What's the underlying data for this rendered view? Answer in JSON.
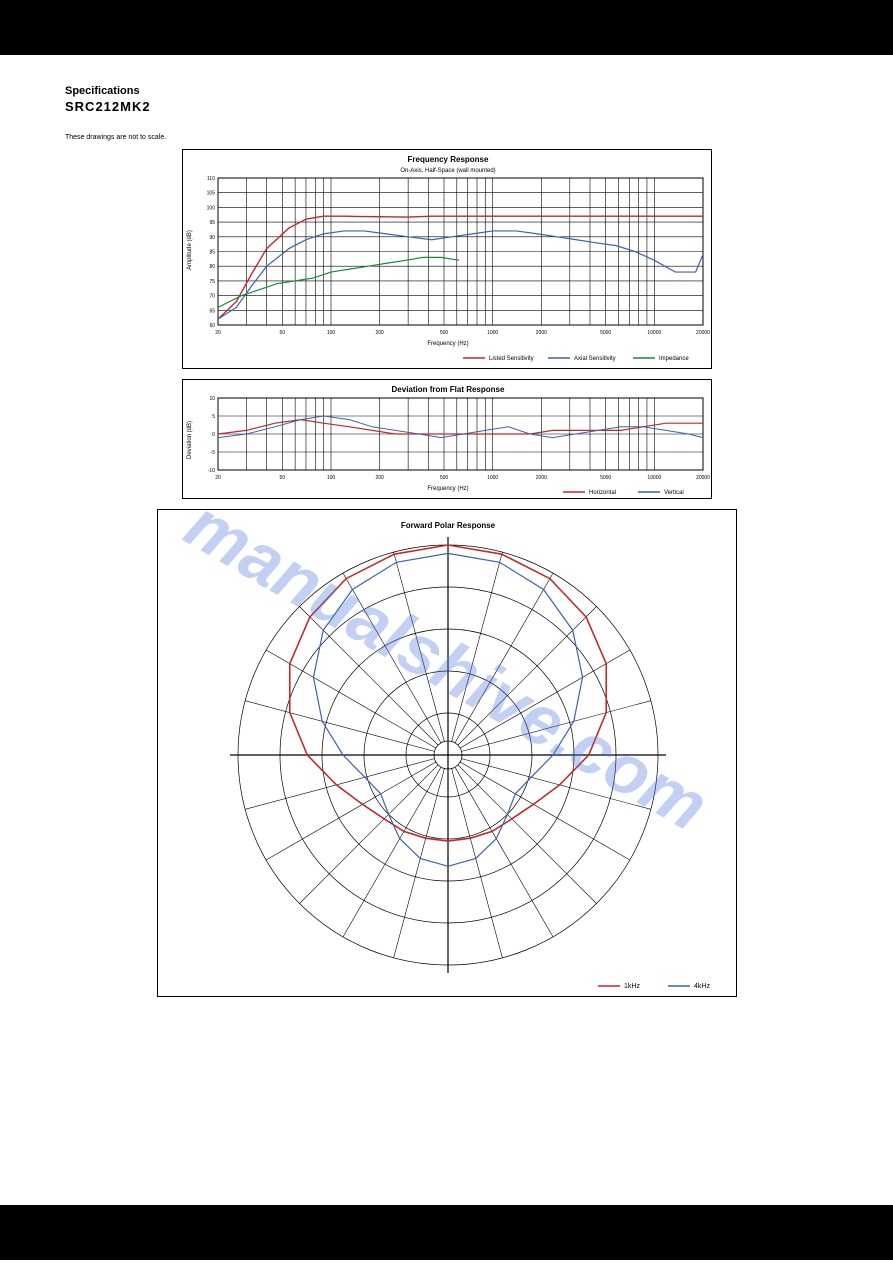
{
  "header": {
    "subtitle": "Specifications",
    "spec_code": "SRC212MK2",
    "note": "These drawings are not to scale."
  },
  "watermark": "manualshive.com",
  "frequency_response": {
    "type": "line",
    "title": "Frequency Response",
    "subtitle": "On-Axis, Half-Space (wall mounted)",
    "xlabel": "Frequency (Hz)",
    "ylabel": "Amplitude (dB)",
    "xticks": [
      20,
      30,
      40,
      50,
      60,
      70,
      80,
      90,
      100,
      200,
      300,
      400,
      500,
      600,
      700,
      800,
      900,
      1000,
      2000,
      3000,
      4000,
      5000,
      6000,
      7000,
      8000,
      9000,
      10000,
      20000
    ],
    "xtick_labels": [
      "20",
      "",
      "",
      "50",
      "",
      "",
      "",
      "",
      "100",
      "200",
      "",
      "",
      "500",
      "",
      "",
      "",
      "",
      "1000",
      "2000",
      "",
      "",
      "5000",
      "",
      "",
      "",
      "",
      "10000",
      "20000"
    ],
    "ylim": [
      60,
      110
    ],
    "ytick_step": 5,
    "background_color": "#ffffff",
    "grid_color": "#000000",
    "series": [
      {
        "name": "Listed Sensitivity",
        "color": "#c22a2a",
        "width": 1.4,
        "x": [
          20,
          26,
          32,
          40,
          55,
          70,
          90,
          120,
          160,
          220,
          300,
          420,
          560,
          750,
          1000,
          1400,
          1900,
          2500,
          3300,
          4300,
          5800,
          7600,
          10000,
          13500,
          18000,
          20000
        ],
        "y": [
          62,
          68,
          77,
          86,
          93,
          96,
          97,
          97,
          96.9,
          96.8,
          96.7,
          97,
          97,
          97,
          97,
          97,
          97,
          97,
          97,
          97,
          97,
          97,
          97,
          97,
          97,
          97
        ]
      },
      {
        "name": "Axial Sensitivity",
        "color": "#3a63b0",
        "width": 1.2,
        "x": [
          20,
          26,
          32,
          40,
          55,
          70,
          90,
          120,
          160,
          220,
          300,
          420,
          560,
          750,
          1000,
          1400,
          1900,
          2500,
          3300,
          4300,
          5800,
          7600,
          10000,
          13500,
          18000,
          20000
        ],
        "y": [
          62,
          66,
          73,
          80,
          86,
          89,
          91,
          92,
          92,
          91,
          90,
          89,
          90,
          91,
          92,
          92,
          91,
          90,
          89,
          88,
          87,
          85,
          82,
          78,
          78,
          84
        ]
      },
      {
        "name": "Impedance",
        "color": "#1a8a3a",
        "width": 1.2,
        "x": [
          20,
          28,
          36,
          46,
          60,
          78,
          100,
          130,
          170,
          220,
          290,
          370,
          480,
          620
        ],
        "y": [
          66,
          70,
          72,
          74,
          75,
          76,
          78,
          79,
          80,
          81,
          82,
          83,
          83,
          82
        ]
      }
    ],
    "legend_items": [
      {
        "label": "Listed Sensitivity",
        "color": "#c22a2a"
      },
      {
        "label": "Axial Sensitivity",
        "color": "#3a63b0"
      },
      {
        "label": "Impedance",
        "color": "#1a8a3a"
      }
    ],
    "title_fontsize": 8,
    "label_fontsize": 6
  },
  "deviation_response": {
    "type": "line",
    "title": "Deviation from Flat Response",
    "subtitle": "",
    "xlabel": "Frequency (Hz)",
    "ylabel": "Deviation (dB)",
    "xticks": [
      20,
      30,
      40,
      50,
      60,
      70,
      80,
      90,
      100,
      200,
      300,
      400,
      500,
      600,
      700,
      800,
      900,
      1000,
      2000,
      3000,
      4000,
      5000,
      6000,
      7000,
      8000,
      9000,
      10000,
      20000
    ],
    "xtick_labels": [
      "20",
      "",
      "",
      "50",
      "",
      "",
      "",
      "",
      "100",
      "200",
      "",
      "",
      "500",
      "",
      "",
      "",
      "",
      "1000",
      "2000",
      "",
      "",
      "5000",
      "",
      "",
      "",
      "",
      "10000",
      "20000"
    ],
    "ylim": [
      -10,
      10
    ],
    "ytick_step": 5,
    "background_color": "#ffffff",
    "grid_color": "#000000",
    "series": [
      {
        "name": "Horizontal",
        "color": "#c22a2a",
        "width": 1.2,
        "x": [
          20,
          30,
          45,
          65,
          90,
          130,
          180,
          250,
          350,
          480,
          660,
          900,
          1250,
          1700,
          2350,
          3250,
          4500,
          6200,
          8500,
          11800,
          16300,
          20000
        ],
        "y": [
          0,
          1,
          3,
          4,
          3,
          2,
          1,
          0,
          0,
          0,
          0,
          0,
          0,
          0,
          1,
          1,
          1,
          1,
          2,
          3,
          3,
          3
        ]
      },
      {
        "name": "Vertical",
        "color": "#3a63b0",
        "width": 1.0,
        "x": [
          20,
          30,
          45,
          65,
          90,
          130,
          180,
          250,
          350,
          480,
          660,
          900,
          1250,
          1700,
          2350,
          3250,
          4500,
          6200,
          8500,
          11800,
          16300,
          20000
        ],
        "y": [
          -1,
          0,
          2,
          4,
          5,
          4,
          2,
          1,
          0,
          -1,
          0,
          1,
          2,
          0,
          -1,
          0,
          1,
          2,
          2,
          1,
          0,
          -1
        ]
      }
    ],
    "legend_items": [
      {
        "label": "Horizontal",
        "color": "#c22a2a"
      },
      {
        "label": "Vertical",
        "color": "#3a63b0"
      }
    ],
    "title_fontsize": 8,
    "label_fontsize": 6
  },
  "polar_response": {
    "type": "polar",
    "title": "Forward Polar Response",
    "rings": 5,
    "spokes": 24,
    "background_color": "#ffffff",
    "grid_color": "#000000",
    "series": [
      {
        "name": "1kHz",
        "color": "#c22a2a",
        "width": 1.6,
        "points": [
          [
            0,
            1.0
          ],
          [
            15,
            0.99
          ],
          [
            30,
            0.97
          ],
          [
            45,
            0.93
          ],
          [
            60,
            0.87
          ],
          [
            75,
            0.78
          ],
          [
            90,
            0.67
          ],
          [
            105,
            0.55
          ],
          [
            120,
            0.47
          ],
          [
            135,
            0.43
          ],
          [
            150,
            0.42
          ],
          [
            165,
            0.41
          ],
          [
            180,
            0.41
          ],
          [
            195,
            0.41
          ],
          [
            210,
            0.42
          ],
          [
            225,
            0.43
          ],
          [
            240,
            0.47
          ],
          [
            255,
            0.55
          ],
          [
            270,
            0.67
          ],
          [
            285,
            0.78
          ],
          [
            300,
            0.87
          ],
          [
            315,
            0.93
          ],
          [
            330,
            0.97
          ],
          [
            345,
            0.99
          ]
        ]
      },
      {
        "name": "4kHz",
        "color": "#3a63b0",
        "width": 1.2,
        "points": [
          [
            0,
            0.96
          ],
          [
            15,
            0.95
          ],
          [
            30,
            0.91
          ],
          [
            45,
            0.84
          ],
          [
            60,
            0.74
          ],
          [
            75,
            0.62
          ],
          [
            90,
            0.5
          ],
          [
            105,
            0.41
          ],
          [
            120,
            0.37
          ],
          [
            135,
            0.4
          ],
          [
            150,
            0.46
          ],
          [
            165,
            0.51
          ],
          [
            180,
            0.53
          ],
          [
            195,
            0.51
          ],
          [
            210,
            0.46
          ],
          [
            225,
            0.4
          ],
          [
            240,
            0.37
          ],
          [
            255,
            0.41
          ],
          [
            270,
            0.5
          ],
          [
            285,
            0.62
          ],
          [
            300,
            0.74
          ],
          [
            315,
            0.84
          ],
          [
            330,
            0.91
          ],
          [
            345,
            0.95
          ]
        ]
      }
    ],
    "legend_items": [
      {
        "label": "1kHz",
        "color": "#c22a2a"
      },
      {
        "label": "4kHz",
        "color": "#3a63b0"
      }
    ],
    "title_fontsize": 8
  }
}
